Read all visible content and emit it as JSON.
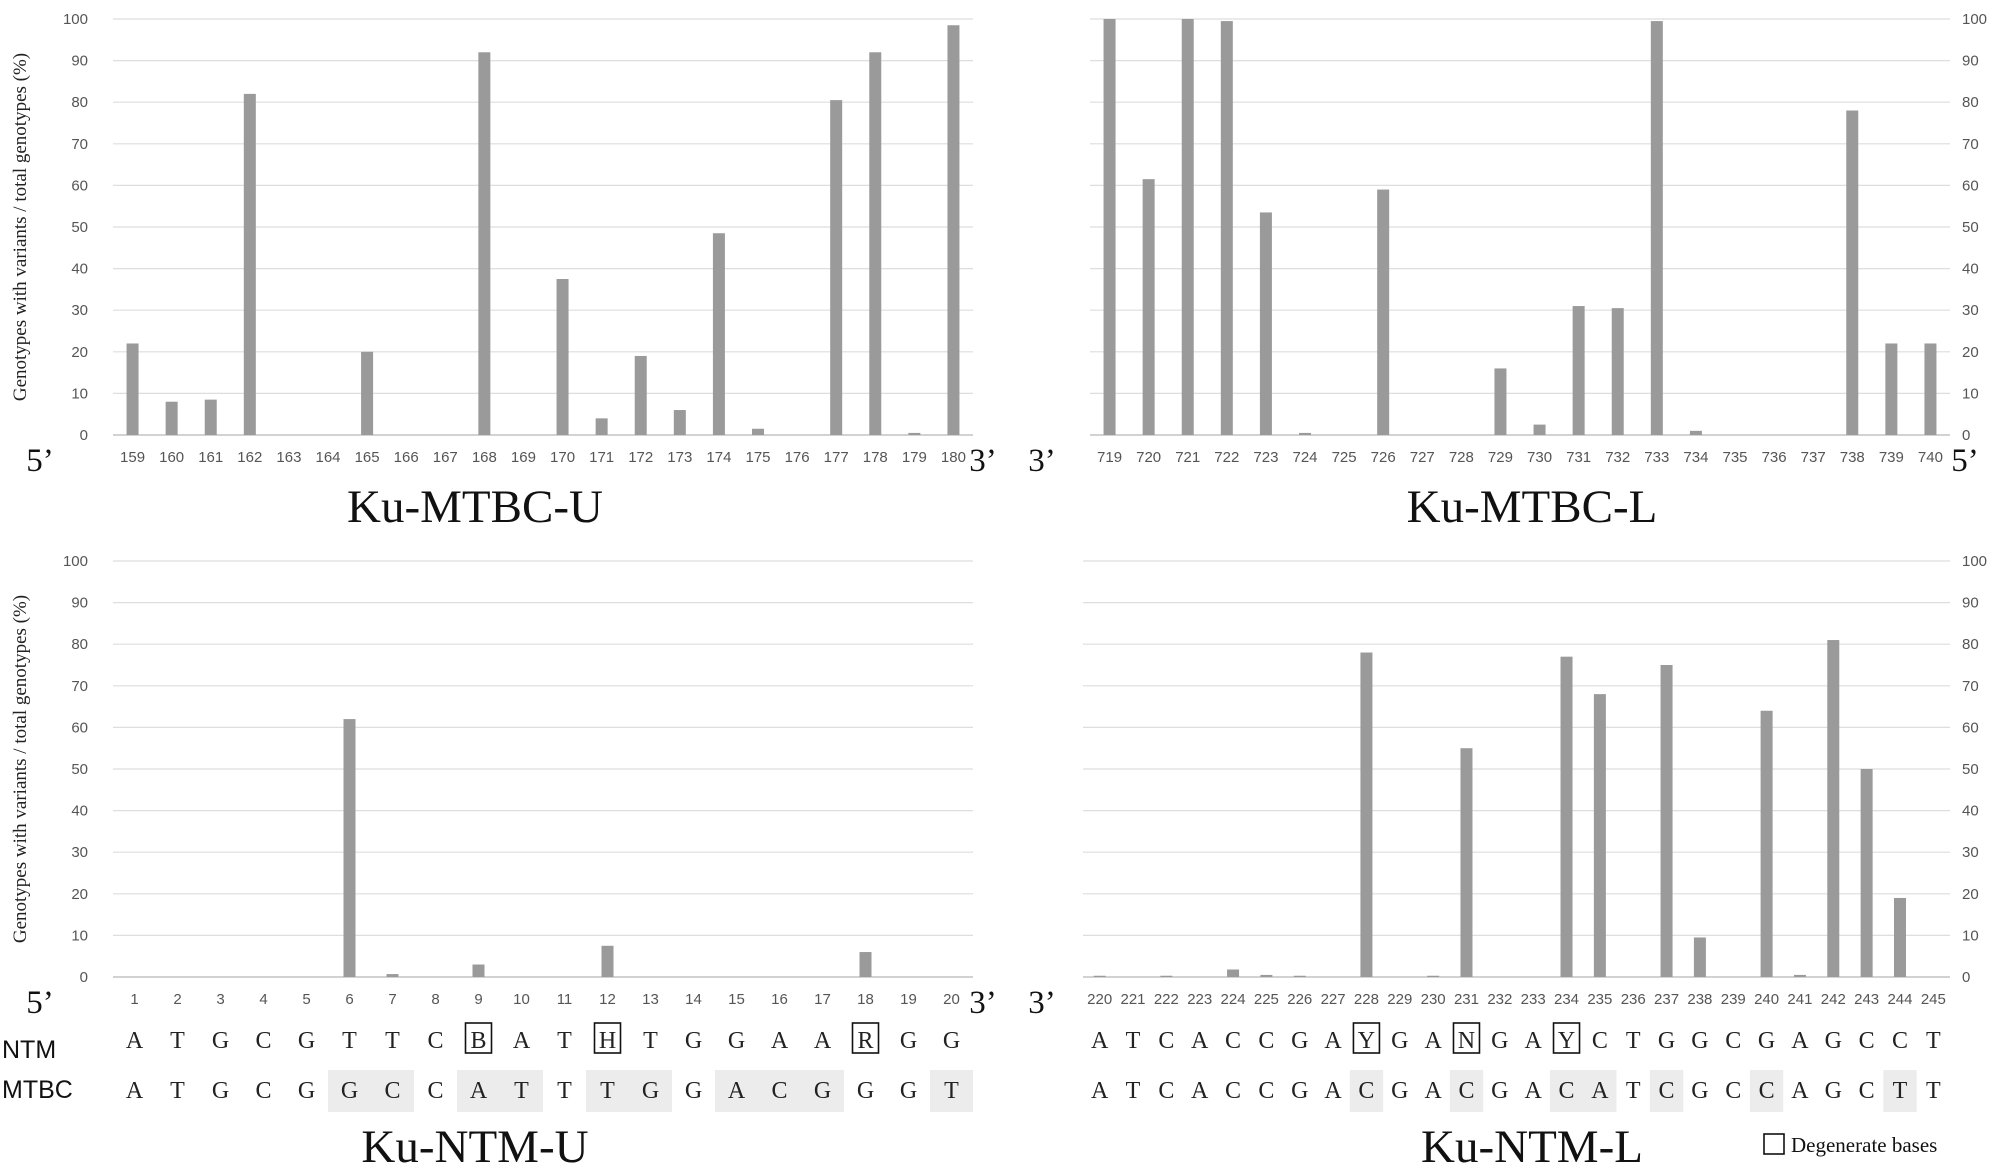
{
  "chart_data": [
    {
      "type": "bar",
      "title": "Ku-MTBC-U",
      "ylabel": "Genotypes with variants / total genotypes (%)",
      "y_axis_side": "left",
      "ylim": [
        0,
        100
      ],
      "yticks": [
        "0",
        "10",
        "20",
        "30",
        "40",
        "50",
        "60",
        "70",
        "80",
        "90",
        "100"
      ],
      "grid": true,
      "start_label": "5’",
      "end_label": "3’",
      "categories": [
        "159",
        "160",
        "161",
        "162",
        "163",
        "164",
        "165",
        "166",
        "167",
        "168",
        "169",
        "170",
        "171",
        "172",
        "173",
        "174",
        "175",
        "176",
        "177",
        "178",
        "179",
        "180"
      ],
      "values": [
        22,
        8,
        8.5,
        82,
        0,
        0,
        20,
        0,
        0,
        92,
        0,
        37.5,
        4,
        19,
        6,
        48.5,
        1.5,
        0,
        80.5,
        92,
        0.5,
        98.5
      ],
      "color": "#9a9a9a"
    },
    {
      "type": "bar",
      "title": "Ku-MTBC-L",
      "ylabel": "",
      "y_axis_side": "right",
      "ylim": [
        0,
        100
      ],
      "yticks": [
        "0",
        "10",
        "20",
        "30",
        "40",
        "50",
        "60",
        "70",
        "80",
        "90",
        "100"
      ],
      "grid": true,
      "start_label": "3’",
      "end_label": "5’",
      "categories": [
        "719",
        "720",
        "721",
        "722",
        "723",
        "724",
        "725",
        "726",
        "727",
        "728",
        "729",
        "730",
        "731",
        "732",
        "733",
        "734",
        "735",
        "736",
        "737",
        "738",
        "739",
        "740"
      ],
      "values": [
        100,
        61.5,
        100,
        99.5,
        53.5,
        0.5,
        0,
        59,
        0,
        0,
        16,
        2.5,
        31,
        30.5,
        99.5,
        1,
        0,
        0,
        0,
        78,
        22,
        22
      ],
      "color": "#9a9a9a"
    },
    {
      "type": "bar",
      "title": "Ku-NTM-U",
      "ylabel": "Genotypes with variants / total genotypes (%)",
      "y_axis_side": "left",
      "ylim": [
        0,
        100
      ],
      "yticks": [
        "0",
        "10",
        "20",
        "30",
        "40",
        "50",
        "60",
        "70",
        "80",
        "90",
        "100"
      ],
      "grid": true,
      "start_label": "5’",
      "end_label": "3’",
      "categories": [
        "1",
        "2",
        "3",
        "4",
        "5",
        "6",
        "7",
        "8",
        "9",
        "10",
        "11",
        "12",
        "13",
        "14",
        "15",
        "16",
        "17",
        "18",
        "19",
        "20"
      ],
      "values": [
        0,
        0,
        0,
        0,
        0,
        62,
        0.7,
        0,
        3,
        0,
        0,
        7.5,
        0,
        0,
        0,
        0,
        0,
        6,
        0,
        0
      ],
      "color": "#9a9a9a",
      "sequences": {
        "NTM": [
          "A",
          "T",
          "G",
          "C",
          "G",
          "T",
          "T",
          "C",
          "B",
          "A",
          "T",
          "H",
          "T",
          "G",
          "G",
          "A",
          "A",
          "R",
          "G",
          "G"
        ],
        "MTBC": [
          "A",
          "T",
          "G",
          "C",
          "G",
          "G",
          "C",
          "C",
          "A",
          "T",
          "T",
          "T",
          "G",
          "G",
          "A",
          "C",
          "G",
          "G",
          "G",
          "T"
        ],
        "degenerate": [
          8,
          11,
          17
        ],
        "mismatch": [
          5,
          6,
          8,
          9,
          11,
          12,
          14,
          15,
          16,
          19
        ]
      }
    },
    {
      "type": "bar",
      "title": "Ku-NTM-L",
      "ylabel": "",
      "y_axis_side": "right",
      "ylim": [
        0,
        100
      ],
      "yticks": [
        "0",
        "10",
        "20",
        "30",
        "40",
        "50",
        "60",
        "70",
        "80",
        "90",
        "100"
      ],
      "grid": true,
      "start_label": "3’",
      "end_label": "",
      "categories": [
        "220",
        "221",
        "222",
        "223",
        "224",
        "225",
        "226",
        "227",
        "228",
        "229",
        "230",
        "231",
        "232",
        "233",
        "234",
        "235",
        "236",
        "237",
        "238",
        "239",
        "240",
        "241",
        "242",
        "243",
        "244",
        "245"
      ],
      "values": [
        0.3,
        0,
        0.3,
        0,
        1.8,
        0.5,
        0.3,
        0,
        78,
        0,
        0.3,
        55,
        0,
        0,
        77,
        68,
        0,
        75,
        9.5,
        0,
        64,
        0.5,
        81,
        50,
        19,
        0
      ],
      "color": "#9a9a9a",
      "sequences": {
        "NTM": [
          "A",
          "T",
          "C",
          "A",
          "C",
          "C",
          "G",
          "A",
          "Y",
          "G",
          "A",
          "N",
          "G",
          "A",
          "Y",
          "C",
          "T",
          "G",
          "G",
          "C",
          "G",
          "A",
          "G",
          "C",
          "C",
          "T"
        ],
        "MTBC": [
          "A",
          "T",
          "C",
          "A",
          "C",
          "C",
          "G",
          "A",
          "C",
          "G",
          "A",
          "C",
          "G",
          "A",
          "C",
          "A",
          "T",
          "C",
          "G",
          "C",
          "C",
          "A",
          "G",
          "C",
          "T",
          "T"
        ],
        "degenerate": [
          8,
          11,
          14
        ],
        "mismatch": [
          8,
          11,
          14,
          15,
          17,
          20,
          24
        ]
      }
    }
  ],
  "sequence_row_labels": {
    "ntm": "NTM",
    "mtbc": "MTBC"
  },
  "legend": {
    "label": "Degenerate bases"
  }
}
